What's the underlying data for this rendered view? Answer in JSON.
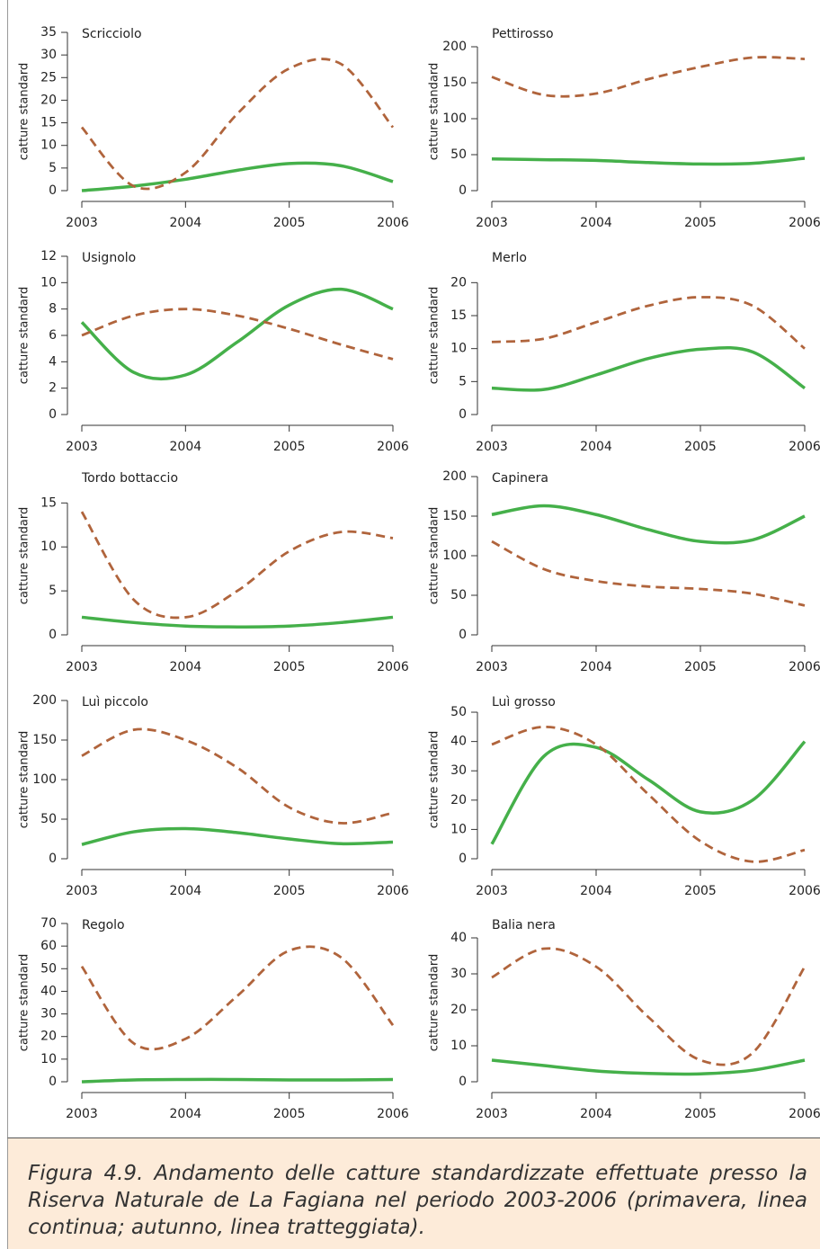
{
  "chart_data": [
    {
      "type": "line",
      "title": "Scricciolo",
      "ylabel": "catture standard",
      "x": [
        2003,
        2003.5,
        2004,
        2004.5,
        2005,
        2005.5,
        2006
      ],
      "xlim": [
        2003,
        2006
      ],
      "xticks": [
        2003,
        2004,
        2005,
        2006
      ],
      "ylim": [
        0,
        35
      ],
      "yticks": [
        0,
        5,
        10,
        15,
        20,
        25,
        30,
        35
      ],
      "series": [
        {
          "color": "#45b04a",
          "dash": false,
          "values": [
            0,
            1,
            2.5,
            4.5,
            6,
            5.5,
            2
          ]
        },
        {
          "color": "#b0643c",
          "dash": true,
          "values": [
            14,
            1,
            4,
            17,
            27,
            28,
            14
          ]
        }
      ]
    },
    {
      "type": "line",
      "title": "Pettirosso",
      "ylabel": "catture standard",
      "x": [
        2003,
        2003.5,
        2004,
        2004.5,
        2005,
        2005.5,
        2006
      ],
      "xlim": [
        2003,
        2006
      ],
      "xticks": [
        2003,
        2004,
        2005,
        2006
      ],
      "ylim": [
        0,
        220
      ],
      "yticks": [
        0,
        50,
        100,
        150,
        200
      ],
      "series": [
        {
          "color": "#45b04a",
          "dash": false,
          "values": [
            44,
            43,
            42,
            39,
            37,
            38,
            45
          ]
        },
        {
          "color": "#b0643c",
          "dash": true,
          "values": [
            158,
            133,
            135,
            155,
            172,
            185,
            183
          ]
        }
      ]
    },
    {
      "type": "line",
      "title": "Usignolo",
      "ylabel": "catture standard",
      "x": [
        2003,
        2003.5,
        2004,
        2004.5,
        2005,
        2005.5,
        2006
      ],
      "xlim": [
        2003,
        2006
      ],
      "xticks": [
        2003,
        2004,
        2005,
        2006
      ],
      "ylim": [
        0,
        12
      ],
      "yticks": [
        0,
        2,
        4,
        6,
        8,
        10,
        12
      ],
      "series": [
        {
          "color": "#45b04a",
          "dash": false,
          "values": [
            7,
            3.2,
            3,
            5.5,
            8.3,
            9.5,
            8
          ]
        },
        {
          "color": "#b0643c",
          "dash": true,
          "values": [
            6,
            7.5,
            8,
            7.5,
            6.5,
            5.3,
            4.2
          ]
        }
      ]
    },
    {
      "type": "line",
      "title": "Merlo",
      "ylabel": "catture standard",
      "x": [
        2003,
        2003.5,
        2004,
        2004.5,
        2005,
        2005.5,
        2006
      ],
      "xlim": [
        2003,
        2006
      ],
      "xticks": [
        2003,
        2004,
        2005,
        2006
      ],
      "ylim": [
        0,
        24
      ],
      "yticks": [
        0,
        5,
        10,
        15,
        20
      ],
      "series": [
        {
          "color": "#45b04a",
          "dash": false,
          "values": [
            4,
            3.8,
            6,
            8.5,
            9.9,
            9.5,
            4
          ]
        },
        {
          "color": "#b0643c",
          "dash": true,
          "values": [
            11,
            11.5,
            14,
            16.5,
            17.8,
            16.5,
            10
          ]
        }
      ]
    },
    {
      "type": "line",
      "title": "Tordo bottaccio",
      "ylabel": "catture standard",
      "x": [
        2003,
        2003.5,
        2004,
        2004.5,
        2005,
        2005.5,
        2006
      ],
      "xlim": [
        2003,
        2006
      ],
      "xticks": [
        2003,
        2004,
        2005,
        2006
      ],
      "ylim": [
        0,
        18
      ],
      "yticks": [
        0,
        5,
        10,
        15
      ],
      "series": [
        {
          "color": "#45b04a",
          "dash": false,
          "values": [
            2,
            1.4,
            1,
            0.9,
            1,
            1.4,
            2
          ]
        },
        {
          "color": "#b0643c",
          "dash": true,
          "values": [
            14,
            4,
            2,
            5,
            9.5,
            11.7,
            11
          ]
        }
      ]
    },
    {
      "type": "line",
      "title": "Capinera",
      "ylabel": "catture standard",
      "x": [
        2003,
        2003.5,
        2004,
        2004.5,
        2005,
        2005.5,
        2006
      ],
      "xlim": [
        2003,
        2006
      ],
      "xticks": [
        2003,
        2004,
        2005,
        2006
      ],
      "ylim": [
        0,
        200
      ],
      "yticks": [
        0,
        50,
        100,
        150,
        200
      ],
      "series": [
        {
          "color": "#45b04a",
          "dash": false,
          "values": [
            152,
            163,
            152,
            133,
            118,
            120,
            150
          ]
        },
        {
          "color": "#b0643c",
          "dash": true,
          "values": [
            118,
            83,
            68,
            61,
            58,
            52,
            37
          ]
        }
      ]
    },
    {
      "type": "line",
      "title": "Luì piccolo",
      "ylabel": "catture standard",
      "x": [
        2003,
        2003.5,
        2004,
        2004.5,
        2005,
        2005.5,
        2006
      ],
      "xlim": [
        2003,
        2006
      ],
      "xticks": [
        2003,
        2004,
        2005,
        2006
      ],
      "ylim": [
        0,
        200
      ],
      "yticks": [
        0,
        50,
        100,
        150,
        200
      ],
      "series": [
        {
          "color": "#45b04a",
          "dash": false,
          "values": [
            18,
            34,
            38,
            33,
            25,
            19,
            21
          ]
        },
        {
          "color": "#b0643c",
          "dash": true,
          "values": [
            130,
            163,
            150,
            115,
            65,
            45,
            58
          ]
        }
      ]
    },
    {
      "type": "line",
      "title": "Luì grosso",
      "ylabel": "catture standard",
      "x": [
        2003,
        2003.5,
        2004,
        2004.5,
        2005,
        2005.5,
        2006
      ],
      "xlim": [
        2003,
        2006
      ],
      "xticks": [
        2003,
        2004,
        2005,
        2006
      ],
      "ylim": [
        0,
        54
      ],
      "yticks": [
        0,
        10,
        20,
        30,
        40,
        50
      ],
      "series": [
        {
          "color": "#45b04a",
          "dash": false,
          "values": [
            5,
            35,
            38,
            27,
            16,
            20,
            40
          ]
        },
        {
          "color": "#b0643c",
          "dash": true,
          "values": [
            39,
            45,
            39,
            22,
            6,
            -1,
            3
          ]
        }
      ]
    },
    {
      "type": "line",
      "title": "Regolo",
      "ylabel": "catture standard",
      "x": [
        2003,
        2003.5,
        2004,
        2004.5,
        2005,
        2005.5,
        2006
      ],
      "xlim": [
        2003,
        2006
      ],
      "xticks": [
        2003,
        2004,
        2005,
        2006
      ],
      "ylim": [
        0,
        70
      ],
      "yticks": [
        0,
        10,
        20,
        30,
        40,
        50,
        60,
        70
      ],
      "series": [
        {
          "color": "#45b04a",
          "dash": false,
          "values": [
            0,
            0.8,
            1,
            1,
            0.8,
            0.8,
            1
          ]
        },
        {
          "color": "#b0643c",
          "dash": true,
          "values": [
            51,
            17,
            19,
            38,
            58,
            55,
            25
          ]
        }
      ]
    },
    {
      "type": "line",
      "title": "Balia nera",
      "ylabel": "catture standard",
      "x": [
        2003,
        2003.5,
        2004,
        2004.5,
        2005,
        2005.5,
        2006
      ],
      "xlim": [
        2003,
        2006
      ],
      "xticks": [
        2003,
        2004,
        2005,
        2006
      ],
      "ylim": [
        0,
        44
      ],
      "yticks": [
        0,
        10,
        20,
        30,
        40
      ],
      "series": [
        {
          "color": "#45b04a",
          "dash": false,
          "values": [
            6,
            4.5,
            3,
            2.3,
            2.2,
            3.2,
            6
          ]
        },
        {
          "color": "#b0643c",
          "dash": true,
          "values": [
            29,
            37,
            32,
            18,
            6,
            8,
            32
          ]
        }
      ]
    }
  ],
  "caption": "Figura 4.9. Andamento delle catture standardizzate effettuate presso la Riserva Naturale de La Fagiana nel periodo 2003-2006 (primavera, linea continua; autunno, linea tratteggiata)."
}
